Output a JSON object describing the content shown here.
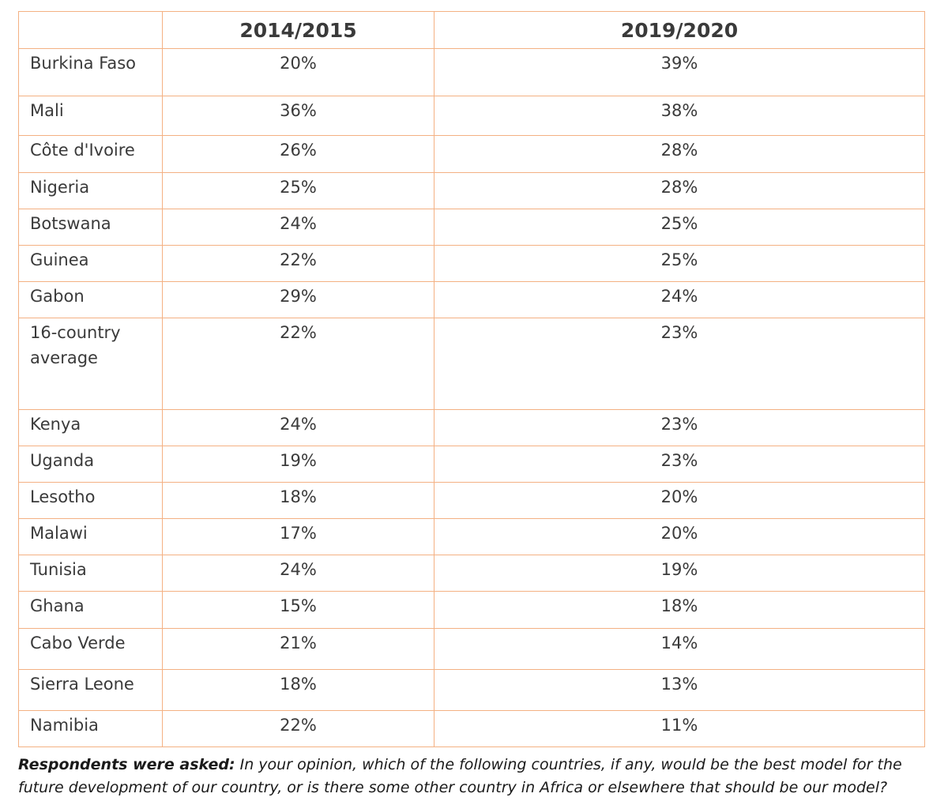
{
  "table": {
    "headers": [
      "",
      "2014/2015",
      "2019/2020"
    ],
    "rows": [
      {
        "country": "Burkina Faso",
        "y2014_2015": "20%",
        "y2019_2020": "39%"
      },
      {
        "country": "Mali",
        "y2014_2015": "36%",
        "y2019_2020": "38%"
      },
      {
        "country": "Côte d'Ivoire",
        "y2014_2015": "26%",
        "y2019_2020": "28%"
      },
      {
        "country": "Nigeria",
        "y2014_2015": "25%",
        "y2019_2020": "28%"
      },
      {
        "country": "Botswana",
        "y2014_2015": "24%",
        "y2019_2020": "25%"
      },
      {
        "country": "Guinea",
        "y2014_2015": "22%",
        "y2019_2020": "25%"
      },
      {
        "country": "Gabon",
        "y2014_2015": "29%",
        "y2019_2020": "24%"
      },
      {
        "country": "16-country average",
        "y2014_2015": "22%",
        "y2019_2020": "23%"
      },
      {
        "country": "Kenya",
        "y2014_2015": "24%",
        "y2019_2020": "23%"
      },
      {
        "country": "Uganda",
        "y2014_2015": "19%",
        "y2019_2020": "23%"
      },
      {
        "country": "Lesotho",
        "y2014_2015": "18%",
        "y2019_2020": "20%"
      },
      {
        "country": "Malawi",
        "y2014_2015": "17%",
        "y2019_2020": "20%"
      },
      {
        "country": "Tunisia",
        "y2014_2015": "24%",
        "y2019_2020": "19%"
      },
      {
        "country": "Ghana",
        "y2014_2015": "15%",
        "y2019_2020": "18%"
      },
      {
        "country": "Cabo Verde",
        "y2014_2015": "21%",
        "y2019_2020": "14%"
      },
      {
        "country": "Sierra Leone",
        "y2014_2015": "18%",
        "y2019_2020": "13%"
      },
      {
        "country": "Namibia",
        "y2014_2015": "22%",
        "y2019_2020": "11%"
      }
    ]
  },
  "footnote": {
    "lead": "Respondents were asked:",
    "question": "In your opinion, which of the following countries, if any, would be the best model for the future development of our country, or is there some other country in Africa or elsewhere that should be our model?"
  },
  "colors": {
    "border": "#f4b183",
    "text": "#3a3a3a",
    "footnote_text": "#1a1a1a",
    "background": "#ffffff"
  }
}
